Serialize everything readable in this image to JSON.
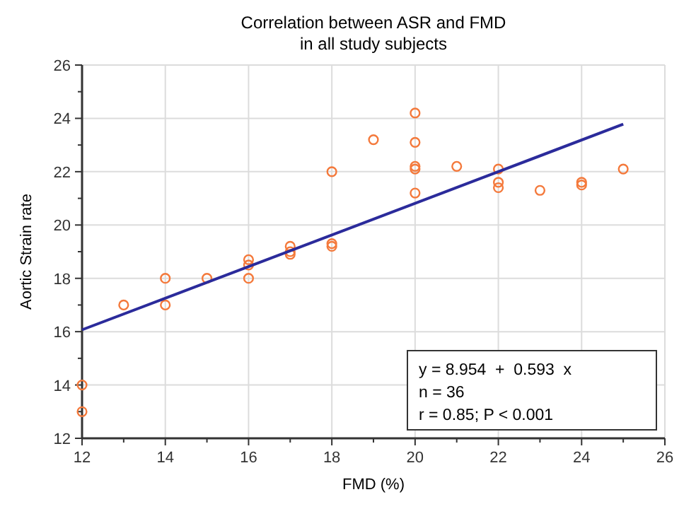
{
  "chart_data": {
    "type": "scatter",
    "title": "Correlation between ASR and FMD",
    "subtitle": "in all study subjects",
    "xlabel": "FMD (%)",
    "ylabel": "Aortic Strain rate",
    "xlim": [
      12,
      26
    ],
    "ylim": [
      12,
      26
    ],
    "xticks": [
      12,
      {
        "value": 13,
        "label": null
      },
      14,
      {
        "value": 15,
        "label": null
      },
      16,
      {
        "value": 17,
        "label": null
      },
      18,
      {
        "value": 19,
        "label": null
      },
      20,
      {
        "value": 21,
        "label": null
      },
      22,
      {
        "value": 23,
        "label": null
      },
      24,
      {
        "value": 25,
        "label": null
      },
      26
    ],
    "yticks": [
      12,
      {
        "value": 13,
        "label": null
      },
      14,
      {
        "value": 15,
        "label": null
      },
      16,
      {
        "value": 17,
        "label": null
      },
      18,
      {
        "value": 19,
        "label": null
      },
      20,
      {
        "value": 21,
        "label": null
      },
      22,
      {
        "value": 23,
        "label": null
      },
      24,
      {
        "value": 25,
        "label": null
      },
      26
    ],
    "grid": true,
    "marker": "circle",
    "series": [
      {
        "color": "#f4793b",
        "x": [
          12,
          12,
          13,
          14,
          14,
          15,
          16,
          16,
          16,
          17,
          17,
          17,
          18,
          18,
          18,
          19,
          20,
          20,
          20,
          20,
          20,
          21,
          22,
          22,
          22,
          23,
          24,
          24,
          25
        ],
        "values": [
          14,
          13,
          17,
          18,
          17,
          18,
          18.7,
          18.5,
          18,
          19.2,
          19.0,
          18.9,
          22,
          19.3,
          19.2,
          23.2,
          24.2,
          23.1,
          22.2,
          22.1,
          21.2,
          22.2,
          22.1,
          21.6,
          21.4,
          21.3,
          21.6,
          21.5,
          22.1
        ]
      },
      {
        "type": "line",
        "color": "#2b2b9b",
        "x": [
          12,
          25
        ],
        "values": [
          16.07,
          23.78
        ],
        "marker": "none"
      }
    ],
    "annotations": [
      "y = 8.954  +  0.593  x",
      "n = 36",
      "r = 0.85; P < 0.001"
    ]
  }
}
